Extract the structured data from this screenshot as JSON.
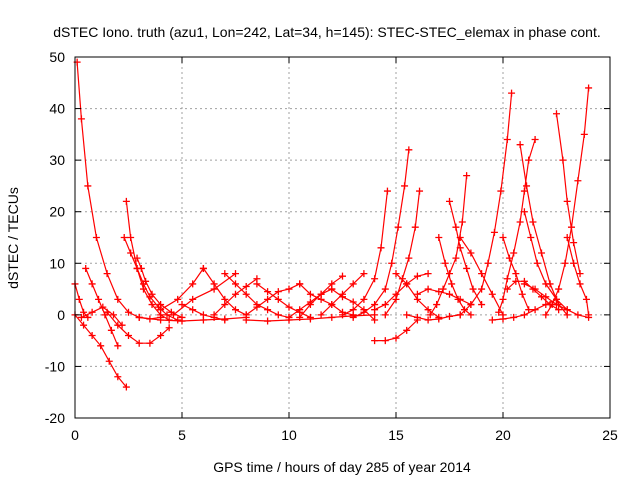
{
  "chart_data": {
    "type": "scatter",
    "title": "dSTEC Iono. truth (azu1, Lon=242, Lat=34, h=145): STEC-STEC_elemax in phase cont.",
    "xlabel": "GPS time / hours of day 285 of year 2014",
    "ylabel": "dSTEC  / TECUs",
    "xlim": [
      0,
      25
    ],
    "ylim": [
      -20,
      50
    ],
    "xticks": [
      0,
      5,
      10,
      15,
      20,
      25
    ],
    "yticks": [
      -20,
      -10,
      0,
      10,
      20,
      30,
      40,
      50
    ],
    "grid": true,
    "marker": "+",
    "color": "#ff0000",
    "series": [
      {
        "x": [
          0.1,
          0.3,
          0.6,
          1.0,
          1.5,
          2.0,
          2.5,
          3.0,
          3.5,
          4.0
        ],
        "y": [
          49,
          38,
          25,
          15,
          8,
          3,
          0.5,
          -0.5,
          -0.8,
          -0.5
        ]
      },
      {
        "x": [
          0.0,
          0.4,
          0.8,
          1.2,
          1.6,
          2.0,
          2.4
        ],
        "y": [
          0,
          -2,
          -4,
          -6,
          -9,
          -12,
          -14
        ]
      },
      {
        "x": [
          0.0,
          0.2,
          0.4,
          0.6
        ],
        "y": [
          6,
          3,
          0.5,
          -0.5
        ]
      },
      {
        "x": [
          0.5,
          0.8,
          1.1,
          1.4,
          1.7,
          2.0
        ],
        "y": [
          9,
          6,
          3,
          0,
          -3,
          -6
        ]
      },
      {
        "x": [
          0.3,
          0.8,
          1.3,
          1.8,
          2.2
        ],
        "y": [
          -0.5,
          0.5,
          1.5,
          0,
          -2
        ]
      },
      {
        "x": [
          2.4,
          2.6,
          2.9,
          3.2,
          3.6,
          4.0,
          4.4
        ],
        "y": [
          22,
          15,
          9,
          5,
          2,
          0,
          -1
        ]
      },
      {
        "x": [
          2.3,
          2.6,
          2.9,
          3.2,
          3.5,
          3.9,
          4.3,
          4.8
        ],
        "y": [
          15,
          12,
          9,
          6,
          3.5,
          1.5,
          0,
          -1
        ]
      },
      {
        "x": [
          2.9,
          3.1,
          3.3,
          3.6,
          4.0,
          4.5,
          5.0
        ],
        "y": [
          11,
          9,
          6.5,
          4,
          2,
          0.5,
          -0.5
        ]
      },
      {
        "x": [
          1.5,
          2.0,
          2.5,
          3.0,
          3.5,
          4.0,
          4.4
        ],
        "y": [
          0.5,
          -2,
          -4,
          -5.5,
          -5.5,
          -4,
          -2.5
        ]
      },
      {
        "x": [
          3.0,
          4.0,
          5.0,
          6.0,
          7.0,
          8.0
        ],
        "y": [
          -0.5,
          -1,
          -1.2,
          -1,
          -0.8,
          -0.5
        ]
      },
      {
        "x": [
          4.0,
          4.8,
          5.5,
          6.0
        ],
        "y": [
          1,
          3,
          6,
          9
        ]
      },
      {
        "x": [
          4.6,
          5.5,
          6.5,
          7.5
        ],
        "y": [
          0,
          3,
          5,
          8
        ]
      },
      {
        "x": [
          6.0,
          6.5,
          7.0,
          7.5,
          8.0
        ],
        "y": [
          9,
          6,
          3,
          1,
          0
        ]
      },
      {
        "x": [
          5.0,
          5.5,
          6.0,
          6.5,
          7.0
        ],
        "y": [
          2,
          1,
          0,
          -0.5,
          -1
        ]
      },
      {
        "x": [
          7.0,
          7.5,
          8.0,
          8.5,
          9.0,
          9.5,
          10.0
        ],
        "y": [
          8,
          6,
          4,
          2,
          1,
          0,
          -0.5
        ]
      },
      {
        "x": [
          6.5,
          7.0,
          7.5,
          8.0,
          8.5
        ],
        "y": [
          0,
          2,
          4,
          5.5,
          7
        ]
      },
      {
        "x": [
          8.0,
          8.5,
          9.0,
          9.5,
          10.0,
          10.5
        ],
        "y": [
          0,
          1.5,
          3,
          4.5,
          5,
          6
        ]
      },
      {
        "x": [
          8.5,
          9.0,
          9.5,
          10.0,
          10.5,
          11.0
        ],
        "y": [
          6,
          4.5,
          3,
          1.5,
          0.5,
          -0.5
        ]
      },
      {
        "x": [
          10.0,
          10.5,
          11.0,
          11.5,
          12.0
        ],
        "y": [
          -0.5,
          1,
          2.5,
          4,
          5
        ]
      },
      {
        "x": [
          10.5,
          11.0,
          11.5,
          12.0,
          12.5,
          13.0
        ],
        "y": [
          6,
          4,
          3,
          2,
          0.5,
          0
        ]
      },
      {
        "x": [
          10.5,
          11.0,
          11.5,
          12.0,
          12.5
        ],
        "y": [
          -0.5,
          2,
          4,
          6,
          7.5
        ]
      },
      {
        "x": [
          12.0,
          12.5,
          13.0,
          13.5,
          14.0
        ],
        "y": [
          5,
          3.5,
          2.5,
          1,
          -1
        ]
      },
      {
        "x": [
          11.5,
          12.0,
          12.5,
          13.0,
          13.5
        ],
        "y": [
          0,
          2,
          4,
          6,
          8
        ]
      },
      {
        "x": [
          8.0,
          9.0,
          10.0,
          11.0,
          12.0,
          13.0,
          14.0
        ],
        "y": [
          -1,
          -1.2,
          -1,
          -0.8,
          -0.5,
          -0.2,
          0
        ]
      },
      {
        "x": [
          12.5,
          13.0,
          13.5,
          14.0,
          14.3,
          14.6
        ],
        "y": [
          0,
          1,
          3,
          7,
          13,
          24
        ]
      },
      {
        "x": [
          13.0,
          13.5,
          14.0,
          14.5,
          14.8,
          15.1,
          15.4,
          15.6
        ],
        "y": [
          -0.5,
          0.5,
          2,
          5,
          10,
          17,
          25,
          32
        ]
      },
      {
        "x": [
          14.5,
          15.0,
          15.3,
          15.6,
          15.9,
          16.1
        ],
        "y": [
          0,
          3,
          7,
          11,
          17,
          24
        ]
      },
      {
        "x": [
          14.0,
          14.5,
          15.0,
          15.5,
          16.0,
          16.5
        ],
        "y": [
          1,
          2,
          4,
          6,
          7.5,
          8
        ]
      },
      {
        "x": [
          14.0,
          14.5,
          15.0,
          15.5,
          16.0
        ],
        "y": [
          -5,
          -5,
          -4.5,
          -3,
          -1
        ]
      },
      {
        "x": [
          15.0,
          15.5,
          16.0,
          16.5,
          17.0
        ],
        "y": [
          8,
          6,
          3,
          1,
          -0.5
        ]
      },
      {
        "x": [
          16.0,
          16.5,
          17.0,
          17.5,
          18.0,
          18.5
        ],
        "y": [
          4,
          5,
          4.5,
          4,
          3,
          2
        ]
      },
      {
        "x": [
          15.5,
          16.0,
          16.5,
          17.0,
          17.5,
          18.0
        ],
        "y": [
          0,
          -0.5,
          -1,
          -0.8,
          -0.3,
          0
        ]
      },
      {
        "x": [
          17.0,
          17.3,
          17.6,
          17.9,
          18.2,
          18.5
        ],
        "y": [
          15,
          10,
          6,
          3,
          1,
          0
        ]
      },
      {
        "x": [
          16.6,
          16.9,
          17.2,
          17.5,
          17.8,
          18.1,
          18.3
        ],
        "y": [
          0,
          2,
          5,
          8,
          11,
          18,
          27
        ]
      },
      {
        "x": [
          17.5,
          17.8,
          18.0,
          18.3,
          18.6,
          19.0
        ],
        "y": [
          22,
          17,
          13,
          9,
          5,
          2
        ]
      },
      {
        "x": [
          18.0,
          18.5,
          19.0,
          19.5,
          20.0
        ],
        "y": [
          15,
          12,
          8,
          4,
          0
        ]
      },
      {
        "x": [
          18.0,
          18.5,
          19.0,
          19.3,
          19.6,
          19.9,
          20.2,
          20.4
        ],
        "y": [
          0,
          2,
          5,
          10,
          16,
          24,
          34,
          43
        ]
      },
      {
        "x": [
          20.0,
          20.3,
          20.6,
          20.9,
          21.2
        ],
        "y": [
          15,
          11,
          8,
          4,
          1
        ]
      },
      {
        "x": [
          19.8,
          20.0,
          20.2,
          20.5,
          20.8,
          21.0,
          21.2,
          21.5
        ],
        "y": [
          0.5,
          3,
          7,
          12,
          18,
          24,
          30,
          34
        ]
      },
      {
        "x": [
          20.8,
          21.1,
          21.4,
          21.8,
          22.2,
          22.6,
          23.0
        ],
        "y": [
          33,
          25,
          18,
          12,
          6,
          2,
          0
        ]
      },
      {
        "x": [
          21.0,
          21.3,
          21.6,
          22.0,
          22.5,
          23.0
        ],
        "y": [
          20,
          15,
          10,
          6,
          3,
          1
        ]
      },
      {
        "x": [
          20.2,
          20.6,
          21.0,
          21.4,
          21.8,
          22.2,
          22.6
        ],
        "y": [
          5,
          6.5,
          6.5,
          5,
          3.5,
          2,
          1
        ]
      },
      {
        "x": [
          19.5,
          20.0,
          20.5,
          21.0,
          21.5,
          22.0,
          22.5
        ],
        "y": [
          -1,
          -0.8,
          -0.5,
          0,
          1,
          2,
          3
        ]
      },
      {
        "x": [
          22.5,
          22.8,
          23.0,
          23.3,
          23.6
        ],
        "y": [
          39,
          30,
          22,
          14,
          8
        ]
      },
      {
        "x": [
          22.0,
          22.3,
          22.6,
          22.9,
          23.2,
          23.5,
          23.8,
          24.0
        ],
        "y": [
          0,
          2,
          5,
          10,
          17,
          26,
          35,
          44
        ]
      },
      {
        "x": [
          23.0,
          23.3,
          23.6,
          23.9,
          24.0
        ],
        "y": [
          15,
          10,
          6,
          3,
          0
        ]
      },
      {
        "x": [
          21.0,
          21.5,
          22.0,
          22.5,
          23.0,
          23.5,
          24.0
        ],
        "y": [
          6,
          5,
          3.5,
          2,
          1,
          0,
          -0.5
        ]
      }
    ]
  }
}
